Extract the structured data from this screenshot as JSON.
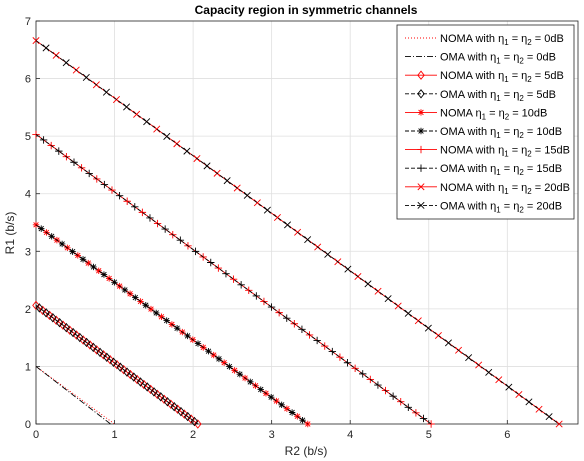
{
  "chart_data": {
    "type": "line",
    "title": "Capacity region in symmetric channels",
    "xlabel": "R2 (b/s)",
    "ylabel": "R1 (b/s)",
    "xlim": [
      0,
      6.9
    ],
    "ylim": [
      0,
      7
    ],
    "xticks": [
      0,
      1,
      2,
      3,
      4,
      5,
      6
    ],
    "yticks": [
      0,
      1,
      2,
      3,
      4,
      5,
      6,
      7
    ],
    "grid": true,
    "legend_position": "top-right",
    "series": [
      {
        "name": "NOMA with η1 = η2 = 0dB",
        "legend": {
          "prefix": "NOMA with η",
          "sub1": "1",
          "mid": " = η",
          "sub2": "2",
          "suffix": " = 0dB"
        },
        "x": [
          0,
          1.0
        ],
        "y": [
          1.0,
          0
        ],
        "color": "#ff0000",
        "dash": "1,2",
        "marker": "none",
        "marker_count": 0
      },
      {
        "name": "OMA with η1 = η2 = 0dB",
        "legend": {
          "prefix": "OMA with η",
          "sub1": "1",
          "mid": " = η",
          "sub2": "2",
          "suffix": " = 0dB"
        },
        "x": [
          0,
          0.95
        ],
        "y": [
          1.0,
          0
        ],
        "color": "#000000",
        "dash": "6,2,1,2",
        "marker": "none",
        "marker_count": 0
      },
      {
        "name": "NOMA with η1 = η2 = 5dB",
        "legend": {
          "prefix": "NOMA with η",
          "sub1": "1",
          "mid": " = η",
          "sub2": "2",
          "suffix": " = 5dB"
        },
        "x": [
          0,
          2.06
        ],
        "y": [
          2.06,
          0
        ],
        "color": "#ff0000",
        "dash": "",
        "marker": "diamond",
        "marker_count": 24
      },
      {
        "name": "OMA with η1 = η2 = 5dB",
        "legend": {
          "prefix": "OMA with η",
          "sub1": "1",
          "mid": " = η",
          "sub2": "2",
          "suffix": " = 5dB"
        },
        "x": [
          0,
          2.06
        ],
        "y": [
          2.06,
          0
        ],
        "color": "#000000",
        "dash": "4,2",
        "marker": "diamond",
        "marker_count": 24
      },
      {
        "name": "NOMA η1 = η2 = 10dB",
        "legend": {
          "prefix": "NOMA η",
          "sub1": "1",
          "mid": " = η",
          "sub2": "2",
          "suffix": " = 10dB"
        },
        "x": [
          0,
          3.46
        ],
        "y": [
          3.46,
          0
        ],
        "color": "#ff0000",
        "dash": "",
        "marker": "asterisk",
        "marker_count": 26
      },
      {
        "name": "OMA with η1 = η2 = 10dB",
        "legend": {
          "prefix": "OMA with η",
          "sub1": "1",
          "mid": " = η",
          "sub2": "2",
          "suffix": " = 10dB"
        },
        "x": [
          0,
          3.46
        ],
        "y": [
          3.46,
          0
        ],
        "color": "#000000",
        "dash": "4,2",
        "marker": "asterisk",
        "marker_count": 26
      },
      {
        "name": "NOMA with η1 = η2 = 15dB",
        "legend": {
          "prefix": "NOMA with η",
          "sub1": "1",
          "mid": " = η",
          "sub2": "2",
          "suffix": " = 15dB"
        },
        "x": [
          0,
          5.03
        ],
        "y": [
          5.03,
          0
        ],
        "color": "#ff0000",
        "dash": "",
        "marker": "plus",
        "marker_count": 26
      },
      {
        "name": "OMA with η1 = η2 = 15dB",
        "legend": {
          "prefix": "OMA with η",
          "sub1": "1",
          "mid": " = η",
          "sub2": "2",
          "suffix": " = 15dB"
        },
        "x": [
          0,
          5.03
        ],
        "y": [
          5.03,
          0
        ],
        "color": "#000000",
        "dash": "4,2",
        "marker": "plus",
        "marker_count": 26
      },
      {
        "name": "NOMA with η1 = η2 = 20dB",
        "legend": {
          "prefix": "NOMA with η",
          "sub1": "1",
          "mid": " = η",
          "sub2": "2",
          "suffix": " = 20dB"
        },
        "x": [
          0,
          6.66
        ],
        "y": [
          6.66,
          0
        ],
        "color": "#ff0000",
        "dash": "",
        "marker": "cross",
        "marker_count": 26
      },
      {
        "name": "OMA with η1 = η2 = 20dB",
        "legend": {
          "prefix": "OMA with η",
          "sub1": "1",
          "mid": " = η",
          "sub2": "2",
          "suffix": " = 20dB"
        },
        "x": [
          0,
          6.66
        ],
        "y": [
          6.66,
          0
        ],
        "color": "#000000",
        "dash": "4,2",
        "marker": "cross",
        "marker_count": 26
      }
    ]
  }
}
